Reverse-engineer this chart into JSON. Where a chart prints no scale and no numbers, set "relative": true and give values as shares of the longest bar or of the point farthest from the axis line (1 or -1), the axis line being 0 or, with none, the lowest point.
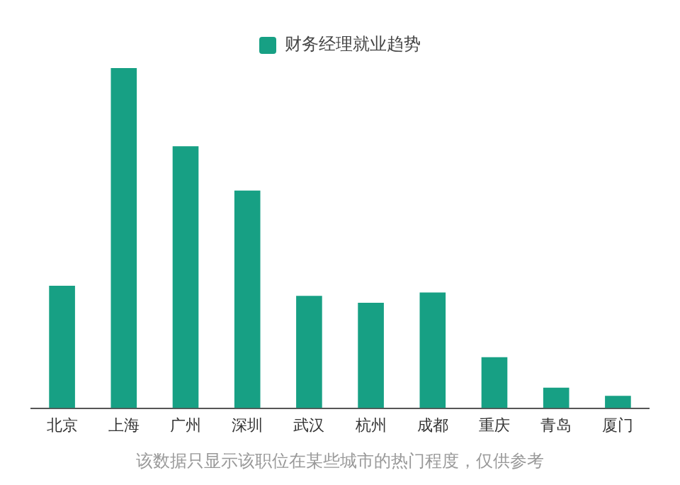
{
  "chart_data": {
    "type": "bar",
    "relative": true,
    "categories": [
      "北京",
      "上海",
      "广州",
      "深圳",
      "武汉",
      "杭州",
      "成都",
      "重庆",
      "青岛",
      "厦门"
    ],
    "series": [
      {
        "name": "财务经理就业趋势",
        "color": "#17a084",
        "values": [
          0.36,
          1,
          0.77,
          0.64,
          0.33,
          0.31,
          0.34,
          0.15,
          0.06,
          0.036
        ]
      }
    ],
    "legend": "top",
    "grid": false,
    "annotations": [
      "该数据只显示该职位在某些城市的热门程度，仅供参考"
    ]
  }
}
